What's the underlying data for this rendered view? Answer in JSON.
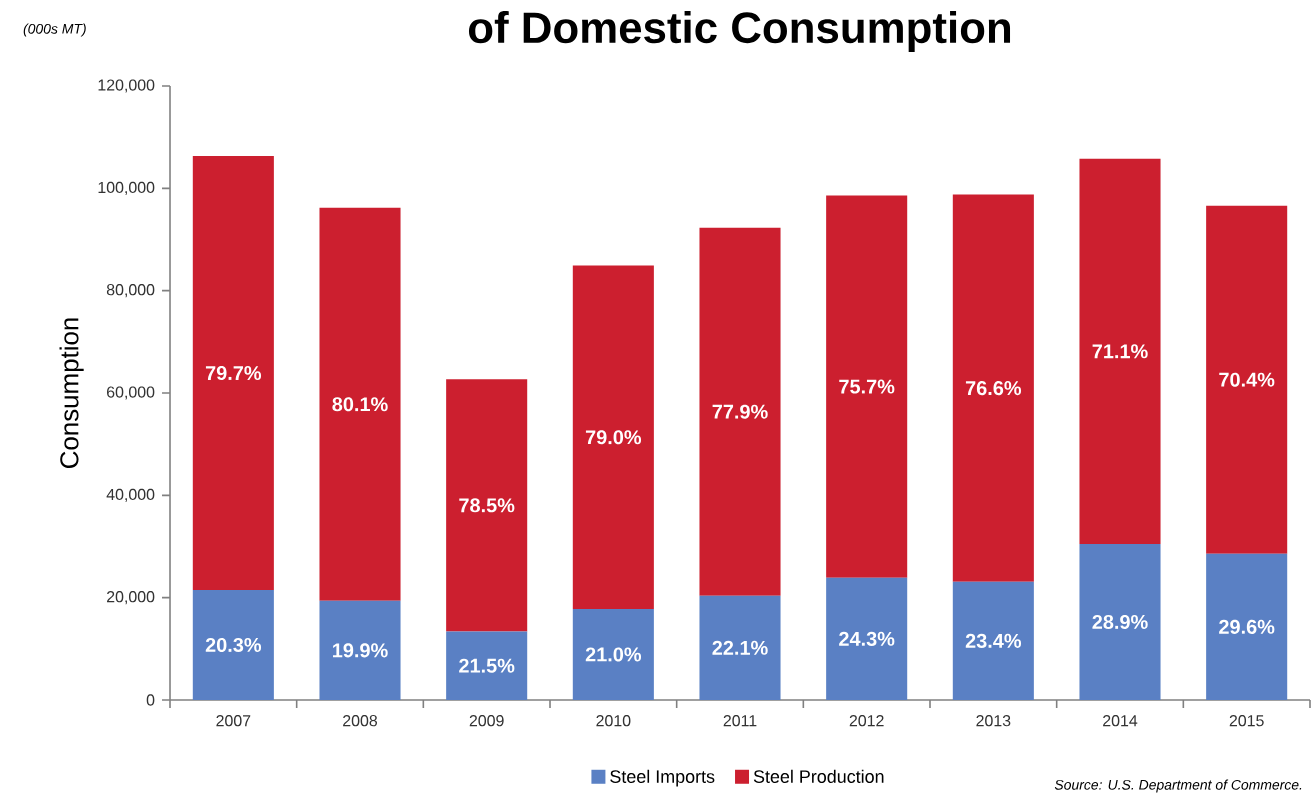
{
  "chart_data": {
    "type": "bar",
    "stacked": true,
    "title": "of Domestic Consumption",
    "ylabel": "Consumption",
    "annotations": [
      "(000s MT)",
      "Source: U.S. Department of Commerce.",
      "20.3%",
      "19.9%",
      "21.5%",
      "21.0%",
      "22.1%",
      "24.3%",
      "23.4%",
      "28.9%",
      "29.6%",
      "79.7%",
      "80.1%",
      "78.5%",
      "79.0%",
      "77.9%",
      "75.7%",
      "76.6%",
      "71.1%",
      "70.4%"
    ],
    "categories": [
      "2007",
      "2008",
      "2009",
      "2010",
      "2011",
      "2012",
      "2013",
      "2014",
      "2015"
    ],
    "series": [
      {
        "name": "Steel Imports",
        "color": "#5a80c4",
        "values": [
          21500,
          19400,
          13400,
          17800,
          20400,
          23900,
          23100,
          30500,
          28600
        ]
      },
      {
        "name": "Steel Production",
        "color": "#cc1f2f",
        "values": [
          84800,
          76800,
          49300,
          67100,
          71900,
          74700,
          75700,
          75300,
          68000
        ]
      }
    ],
    "ylim": [
      0,
      120000
    ],
    "yticks": [
      0,
      {
        "value": 20000,
        "label": "20,000"
      },
      {
        "value": 40000,
        "label": "40,000"
      },
      {
        "value": 60000,
        "label": "60,000"
      },
      {
        "value": 80000,
        "label": "80,000"
      },
      {
        "value": 100000,
        "label": "100,000"
      },
      {
        "value": 120000,
        "label": "120,000"
      }
    ],
    "grid": false,
    "legend": "bottom"
  }
}
